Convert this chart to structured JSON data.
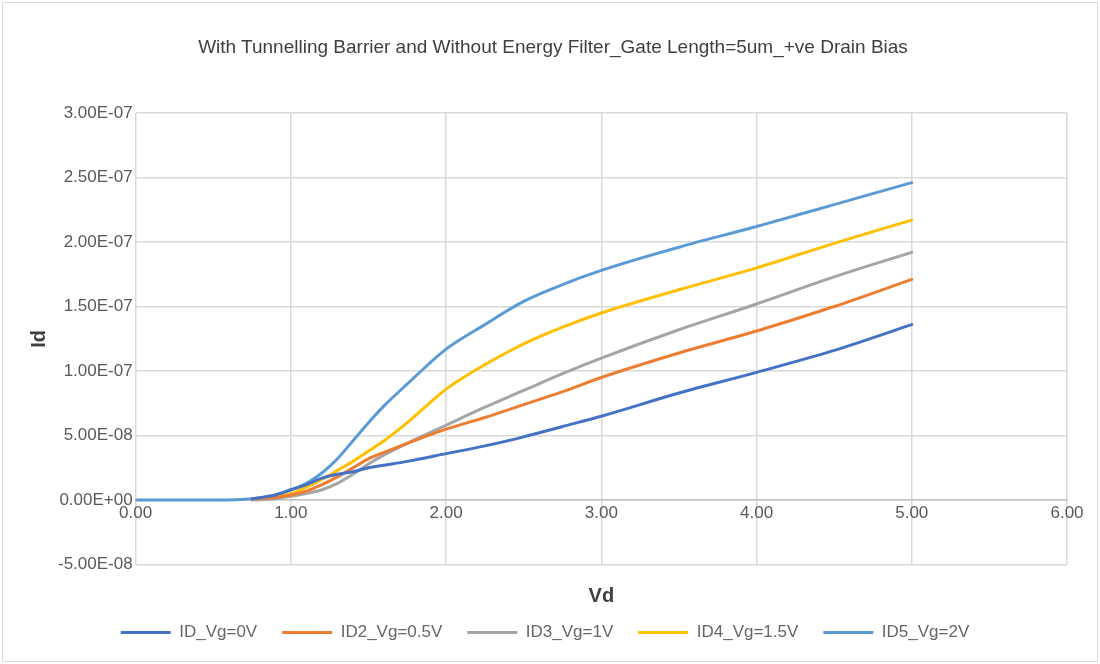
{
  "chart_data": {
    "type": "line",
    "title": "With Tunnelling Barrier and Without Energy Filter_Gate Length=5um_+ve Drain Bias",
    "xlabel": "Vd",
    "ylabel": "Id",
    "x": [
      0,
      0.5,
      0.75,
      0.9,
      1,
      1.1,
      1.2,
      1.3,
      1.4,
      1.5,
      1.6,
      1.75,
      2,
      2.25,
      2.5,
      2.75,
      3,
      3.5,
      4,
      4.5,
      5
    ],
    "series": [
      {
        "name": "ID_Vg=0V",
        "color": "#4472c4",
        "values": [
          null,
          null,
          1e-09,
          4e-09,
          8e-09,
          1.2e-08,
          1.7e-08,
          2e-08,
          2.2e-08,
          2.5e-08,
          2.7e-08,
          3e-08,
          3.6e-08,
          4.2e-08,
          4.9e-08,
          5.7e-08,
          6.5e-08,
          8.3e-08,
          9.9e-08,
          1.16e-07,
          1.36e-07
        ]
      },
      {
        "name": "ID2_Vg=0.5V",
        "color": "#ed7d31",
        "values": [
          null,
          null,
          1e-09,
          2e-09,
          4e-09,
          7e-09,
          1.2e-08,
          1.8e-08,
          2.5e-08,
          3.2e-08,
          3.7e-08,
          4.4e-08,
          5.5e-08,
          6.4e-08,
          7.4e-08,
          8.4e-08,
          9.5e-08,
          1.14e-07,
          1.31e-07,
          1.5e-07,
          1.71e-07
        ]
      },
      {
        "name": "ID3_Vg=1V",
        "color": "#a5a5a5",
        "values": [
          null,
          null,
          0,
          1e-09,
          3e-09,
          5e-09,
          8e-09,
          1.3e-08,
          2e-08,
          2.8e-08,
          3.5e-08,
          4.4e-08,
          5.8e-08,
          7.2e-08,
          8.5e-08,
          9.8e-08,
          1.1e-07,
          1.32e-07,
          1.52e-07,
          1.73e-07,
          1.92e-07
        ]
      },
      {
        "name": "ID4_Vg=1.5V",
        "color": "#ffc000",
        "values": [
          null,
          null,
          null,
          3e-09,
          5e-09,
          1e-08,
          1.6e-08,
          2.3e-08,
          3e-08,
          3.8e-08,
          4.6e-08,
          6e-08,
          8.6e-08,
          1.05e-07,
          1.21e-07,
          1.34e-07,
          1.45e-07,
          1.63e-07,
          1.8e-07,
          1.99e-07,
          2.17e-07
        ]
      },
      {
        "name": "ID5_Vg=2V",
        "color": "#5b9bd5",
        "values": [
          0,
          0,
          1e-09,
          4e-09,
          8e-09,
          1.3e-08,
          2.1e-08,
          3.2e-08,
          4.6e-08,
          6e-08,
          7.3e-08,
          9e-08,
          1.17e-07,
          1.36e-07,
          1.54e-07,
          1.67e-07,
          1.78e-07,
          1.96e-07,
          2.12e-07,
          2.29e-07,
          2.46e-07
        ]
      }
    ],
    "xlim": [
      0,
      6
    ],
    "xticks": [
      {
        "value": 0,
        "label": "0.00"
      },
      {
        "value": 1,
        "label": "1.00"
      },
      {
        "value": 2,
        "label": "2.00"
      },
      {
        "value": 3,
        "label": "3.00"
      },
      {
        "value": 4,
        "label": "4.00"
      },
      {
        "value": 5,
        "label": "5.00"
      },
      {
        "value": 6,
        "label": "6.00"
      }
    ],
    "ylim": [
      -5e-08,
      3e-07
    ],
    "yticks": [
      {
        "value": -5e-08,
        "label": "-5.00E-08"
      },
      {
        "value": 0,
        "label": "0.00E+00"
      },
      {
        "value": 5e-08,
        "label": "5.00E-08"
      },
      {
        "value": 1e-07,
        "label": "1.00E-07"
      },
      {
        "value": 1.5e-07,
        "label": "1.50E-07"
      },
      {
        "value": 2e-07,
        "label": "2.00E-07"
      },
      {
        "value": 2.5e-07,
        "label": "2.50E-07"
      },
      {
        "value": 3e-07,
        "label": "3.00E-07"
      }
    ],
    "grid": true,
    "legend": "bottom",
    "marker": "none",
    "line_style": "solid"
  }
}
